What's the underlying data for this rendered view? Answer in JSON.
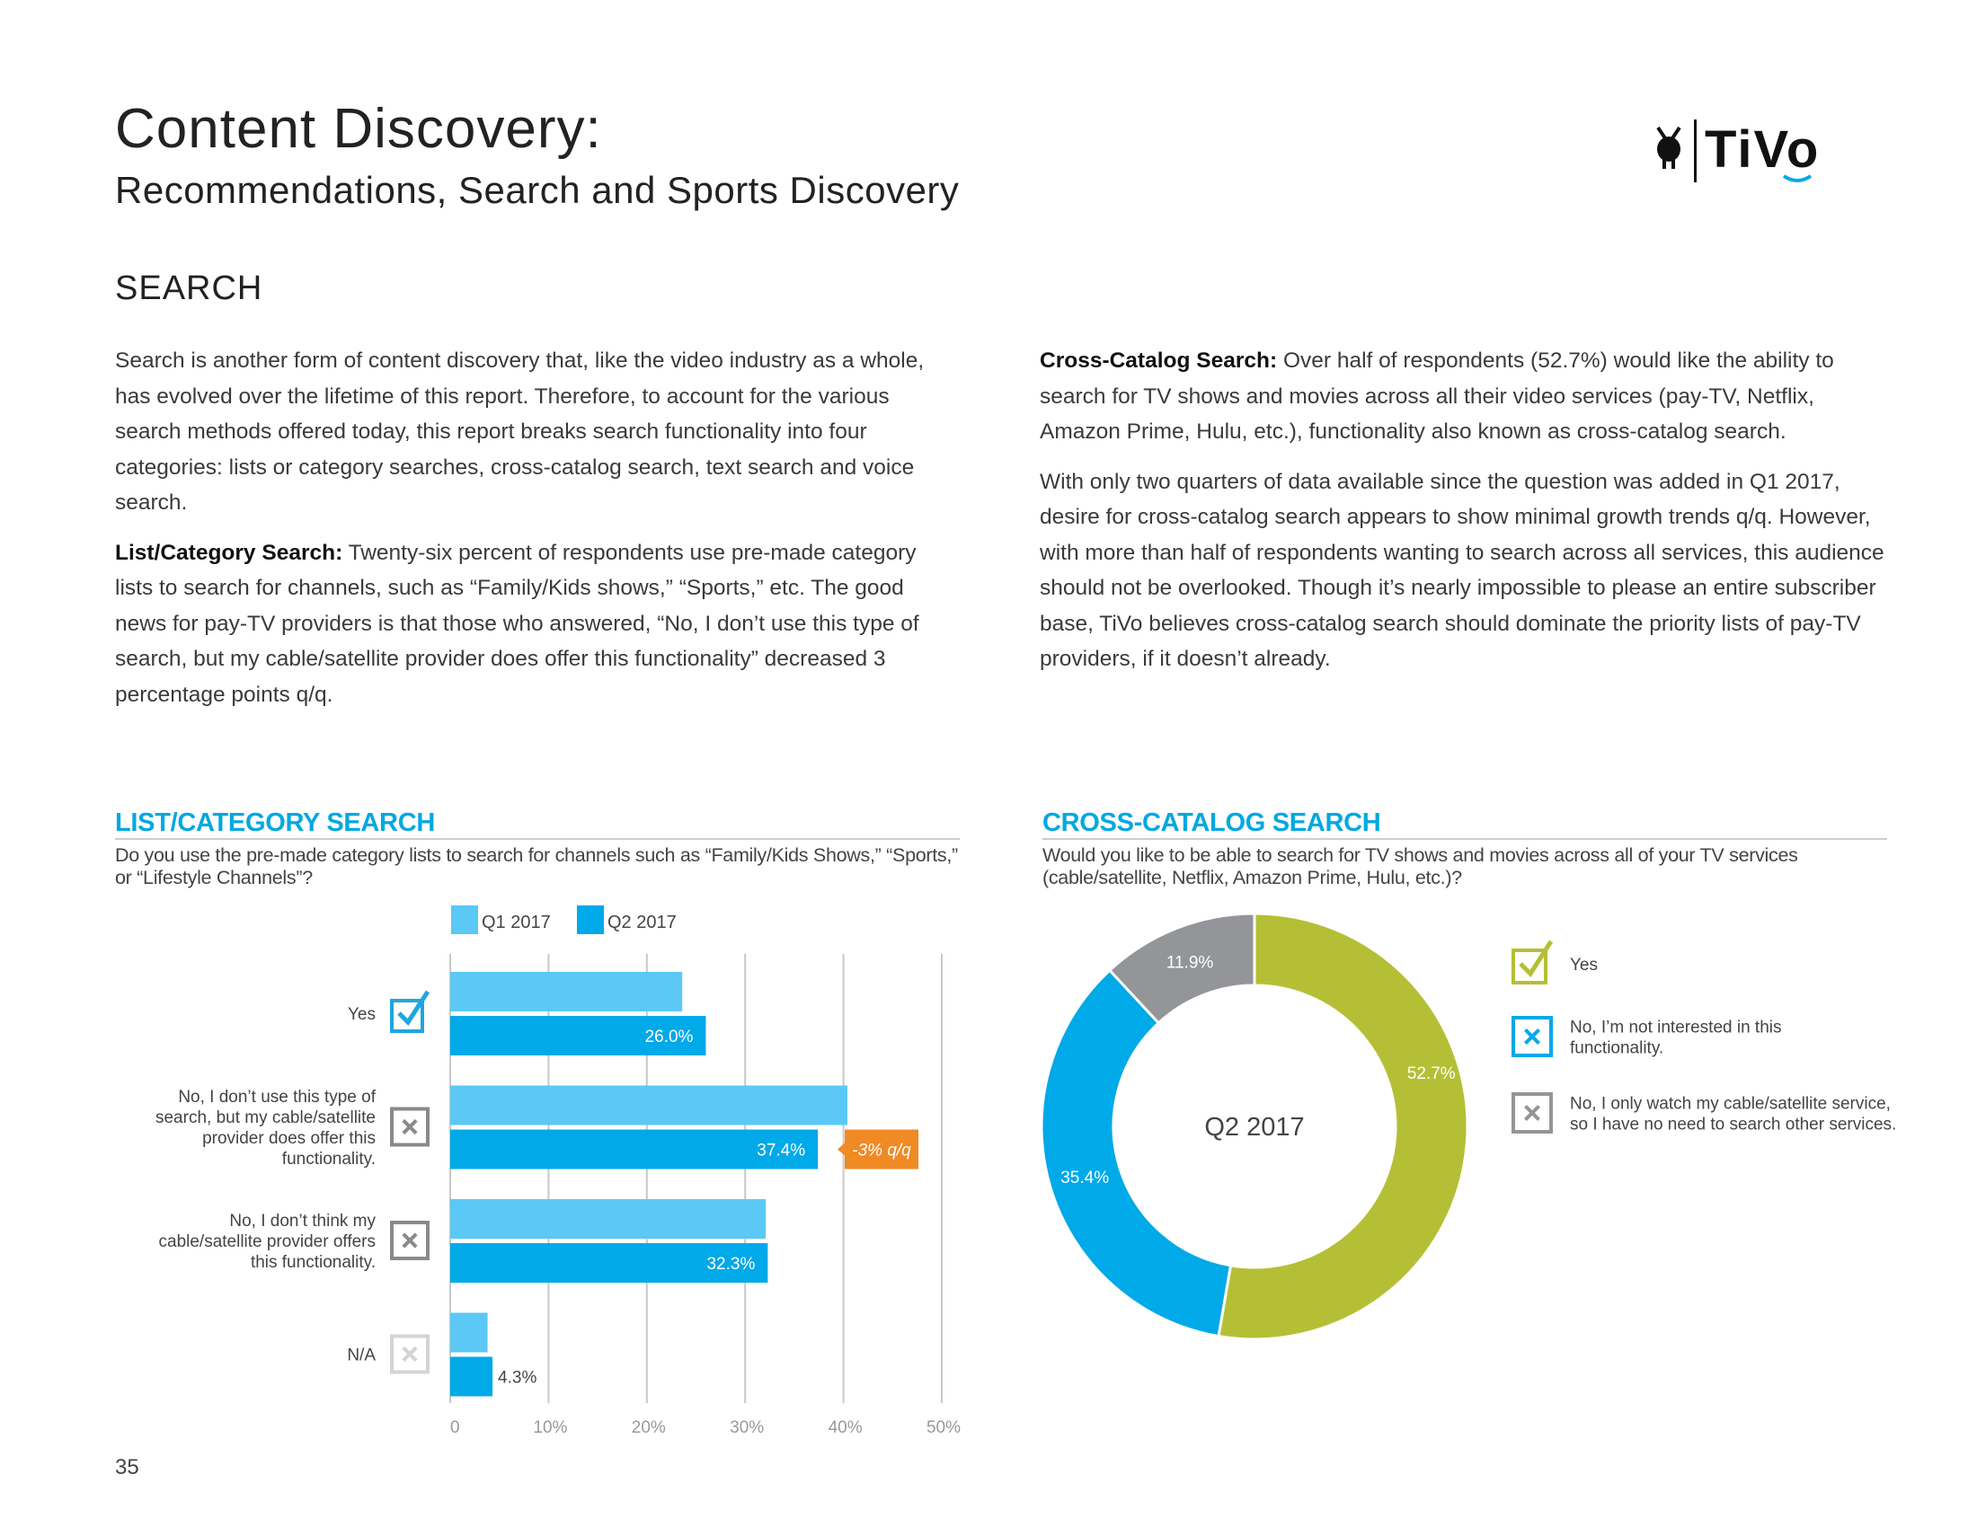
{
  "header": {
    "title": "Content Discovery:",
    "subtitle": "Recommendations, Search and Sports Discovery",
    "logo_text": "TiVo"
  },
  "section": "SEARCH",
  "left_column": [
    {
      "lead": "",
      "text": "Search is another form of content discovery that, like the video industry as a whole, has evolved over the lifetime of this report. Therefore, to account for the various search methods offered today, this report breaks search functionality into four categories: lists or category searches, cross-catalog search, text search and voice search."
    },
    {
      "lead": "List/Category Search:",
      "text": " Twenty-six percent of respondents use pre-made category lists to search for channels, such as “Family/Kids shows,” “Sports,” etc. The good news for pay-TV providers is that those who answered, “No, I don’t use this type of search, but my cable/satellite provider does offer this functionality” decreased 3 percentage points q/q."
    }
  ],
  "right_column": [
    {
      "lead": "Cross-Catalog Search:",
      "text": " Over half of respondents (52.7%) would like the ability to search for TV shows and movies across all their video services (pay-TV, Netflix, Amazon Prime, Hulu, etc.), functionality also known as cross-catalog search."
    },
    {
      "lead": "",
      "text": "With only two quarters of data available since the question was added in Q1 2017, desire for cross-catalog search appears to show minimal growth trends q/q. However, with more than half of respondents wanting to search across all services, this audience should not be overlooked. Though it’s nearly impossible to please an entire subscriber base, TiVo believes cross-catalog search should dominate the priority lists of pay-TV providers, if it doesn’t already."
    }
  ],
  "page_number": "35",
  "chart_data": [
    {
      "type": "bar",
      "orientation": "horizontal",
      "title": "LIST/CATEGORY SEARCH",
      "subtitle": "Do you use the pre-made category lists to search for channels such as “Family/Kids Shows,” “Sports,” or “Lifestyle Channels”?",
      "categories": [
        "Yes",
        "No, I don’t use this type of search, but my cable/satellite provider does offer this functionality.",
        "No, I don’t think my cable/satellite provider offers this functionality.",
        "N/A"
      ],
      "category_icons": [
        "check-icon",
        "x-icon",
        "x-icon",
        "x-icon-faded"
      ],
      "series": [
        {
          "name": "Q1 2017",
          "values": [
            23.6,
            40.4,
            32.1,
            3.8
          ],
          "color": "#5bc8f5"
        },
        {
          "name": "Q2 2017",
          "values": [
            26.0,
            37.4,
            32.3,
            4.3
          ],
          "color": "#00a9e8",
          "labels": [
            "26.0%",
            "37.4%",
            "32.3%",
            "4.3%"
          ]
        }
      ],
      "xlim": [
        0,
        50
      ],
      "ticks": [
        "0",
        "10%",
        "20%",
        "30%",
        "40%",
        "50%"
      ],
      "tick_values": [
        0,
        10,
        20,
        30,
        40,
        50
      ],
      "grid": true,
      "legend": "top",
      "annotation": {
        "category_index": 1,
        "text": "-3% q/q",
        "color": "#f08a24"
      }
    },
    {
      "type": "pie",
      "donut": true,
      "title": "CROSS-CATALOG SEARCH",
      "subtitle": "Would you like to be able to search for TV shows and movies across all of your TV services (cable/satellite, Netflix, Amazon Prime, Hulu, etc.)?",
      "center_label": "Q2 2017",
      "slices": [
        {
          "label": "Yes",
          "value": 52.7,
          "text": "52.7%",
          "color": "#b5bf35",
          "icon": "check-icon"
        },
        {
          "label": "No, I’m not interested in this functionality.",
          "value": 35.4,
          "text": "35.4%",
          "color": "#00a9e8",
          "icon": "x-icon"
        },
        {
          "label": "No, I only watch my cable/satellite service, so I have no need to search other services.",
          "value": 11.9,
          "text": "11.9%",
          "color": "#939598",
          "icon": "x-icon"
        }
      ],
      "legend": "right"
    }
  ]
}
